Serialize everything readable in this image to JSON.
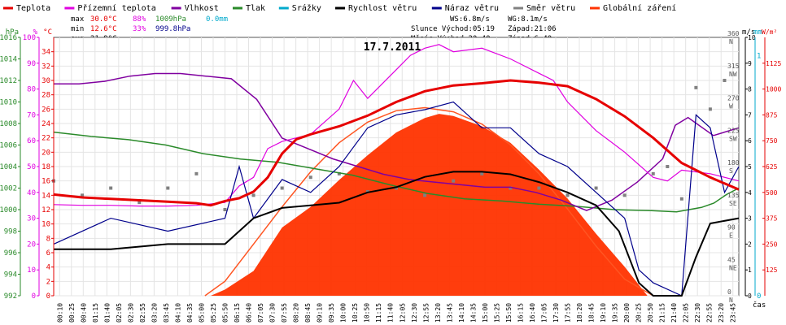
{
  "chart_data": {
    "type": "line",
    "title": "17.7.2011",
    "legend": [
      {
        "name": "Teplota",
        "color": "#e60000"
      },
      {
        "name": "Přízemní teplota",
        "color": "#e000e0"
      },
      {
        "name": "Vlhkost",
        "color": "#8000a0"
      },
      {
        "name": "Tlak",
        "color": "#2a8a2a"
      },
      {
        "name": "Srážky",
        "color": "#00aacc"
      },
      {
        "name": "Rychlost větru",
        "color": "#000000"
      },
      {
        "name": "Náraz větru",
        "color": "#00008b"
      },
      {
        "name": "Směr větru",
        "color": "#808080"
      },
      {
        "name": "Globální záření",
        "color": "#ff3300"
      }
    ],
    "stats": {
      "max_label": "max",
      "max_temp": "30.0°C",
      "max_hum": "88%",
      "max_press": "1009hPa",
      "rain": "0.0mm",
      "min_label": "min",
      "min_temp": "12.6°C",
      "min_hum": "33%",
      "min_press": "999.8hPa",
      "avg_label": "avg",
      "avg_temp": "21.9°C",
      "ws": "WS:6.8m/s",
      "wg": "WG:8.1m/s",
      "sun": "Slunce Východ:05:19",
      "sun_set": "Západ:21:06",
      "moon": "Měsíc  Východ:20:40",
      "moon_set": "Západ:6:40"
    },
    "axes": {
      "hpa": {
        "label": "hPa",
        "min": 992,
        "max": 1016,
        "ticks": [
          992,
          994,
          996,
          998,
          1000,
          1002,
          1004,
          1006,
          1008,
          1010,
          1012,
          1014,
          1016
        ],
        "color": "#2a8a2a"
      },
      "pct": {
        "label": "%",
        "min": 0,
        "max": 100,
        "ticks": [
          0,
          10,
          20,
          30,
          40,
          50,
          60,
          70,
          80,
          90,
          100
        ],
        "color": "#e000e0"
      },
      "temp": {
        "label": "°C",
        "min": 0,
        "max": 36,
        "ticks": [
          0,
          2,
          4,
          6,
          8,
          10,
          12,
          14,
          16,
          18,
          20,
          22,
          24,
          26,
          28,
          30,
          32,
          34
        ],
        "color": "#e60000"
      },
      "ms": {
        "label": "m/s",
        "min": 0,
        "max": 10,
        "ticks": [
          0,
          1,
          2,
          3,
          4,
          5,
          6,
          7,
          8,
          9,
          10
        ],
        "color": "#000000"
      },
      "mm": {
        "label": "mm",
        "min": 0,
        "max": 1,
        "ticks": [
          "0",
          "1"
        ],
        "color": "#00aacc"
      },
      "wm2": {
        "label": "W/m²",
        "min": 0,
        "max": 1250,
        "ticks": [
          125,
          250,
          375,
          500,
          625,
          750,
          875,
          1000,
          1125
        ],
        "color": "#e60000"
      },
      "dir": {
        "ticks": [
          {
            "deg": 0,
            "l1": "0",
            "l2": "N"
          },
          {
            "deg": 45,
            "l1": "45",
            "l2": "NE"
          },
          {
            "deg": 90,
            "l1": "90",
            "l2": "E"
          },
          {
            "deg": 135,
            "l1": "135",
            "l2": "SE"
          },
          {
            "deg": 180,
            "l1": "180",
            "l2": "S"
          },
          {
            "deg": 225,
            "l1": "225",
            "l2": "SW"
          },
          {
            "deg": 270,
            "l1": "270",
            "l2": "W"
          },
          {
            "deg": 315,
            "l1": "315",
            "l2": "NW"
          },
          {
            "deg": 360,
            "l1": "360",
            "l2": "N"
          }
        ]
      },
      "x_label": "čas",
      "x_ticks": [
        "00:10",
        "00:25",
        "00:40",
        "01:15",
        "01:40",
        "02:05",
        "02:30",
        "02:55",
        "03:20",
        "03:45",
        "04:10",
        "04:35",
        "05:00",
        "05:25",
        "05:50",
        "06:15",
        "06:40",
        "07:05",
        "07:30",
        "07:55",
        "08:20",
        "08:45",
        "09:10",
        "09:35",
        "10:00",
        "10:25",
        "10:50",
        "11:15",
        "11:40",
        "12:05",
        "12:30",
        "12:55",
        "13:20",
        "13:45",
        "14:10",
        "14:35",
        "15:00",
        "15:25",
        "15:50",
        "16:15",
        "16:40",
        "17:05",
        "17:30",
        "17:55",
        "18:20",
        "18:45",
        "19:10",
        "19:35",
        "20:00",
        "20:25",
        "20:50",
        "21:15",
        "21:40",
        "22:05",
        "22:30",
        "22:55",
        "23:20",
        "23:45"
      ]
    },
    "series": {
      "temperature": {
        "unit": "°C",
        "points": [
          [
            0,
            14.1
          ],
          [
            1,
            13.7
          ],
          [
            2,
            13.5
          ],
          [
            3,
            13.3
          ],
          [
            4,
            13.1
          ],
          [
            5,
            12.9
          ],
          [
            5.5,
            12.6
          ],
          [
            6,
            13.2
          ],
          [
            6.5,
            13.6
          ],
          [
            7,
            14.5
          ],
          [
            7.5,
            16.5
          ],
          [
            8,
            19.8
          ],
          [
            8.5,
            21.8
          ],
          [
            9,
            22.5
          ],
          [
            10,
            23.6
          ],
          [
            11,
            25.1
          ],
          [
            12,
            27.0
          ],
          [
            13,
            28.5
          ],
          [
            14,
            29.3
          ],
          [
            15,
            29.6
          ],
          [
            16,
            30.0
          ],
          [
            17,
            29.7
          ],
          [
            18,
            29.2
          ],
          [
            19,
            27.4
          ],
          [
            20,
            25.0
          ],
          [
            21,
            22.0
          ],
          [
            22,
            18.5
          ],
          [
            22.5,
            17.5
          ],
          [
            23,
            16.5
          ],
          [
            24,
            14.8
          ]
        ]
      },
      "ground_temperature": {
        "unit": "°C",
        "points": [
          [
            0,
            12.7
          ],
          [
            1,
            12.6
          ],
          [
            2,
            12.6
          ],
          [
            3,
            12.5
          ],
          [
            4,
            12.5
          ],
          [
            5,
            12.6
          ],
          [
            6,
            13.0
          ],
          [
            6.5,
            15.3
          ],
          [
            7,
            16.5
          ],
          [
            7.5,
            20.5
          ],
          [
            8,
            21.5
          ],
          [
            9,
            22.5
          ],
          [
            10,
            26.0
          ],
          [
            10.5,
            30.0
          ],
          [
            11,
            27.5
          ],
          [
            12,
            31.5
          ],
          [
            12.5,
            33.5
          ],
          [
            13,
            34.5
          ],
          [
            13.5,
            35.0
          ],
          [
            14,
            34.0
          ],
          [
            15,
            34.5
          ],
          [
            16,
            33.0
          ],
          [
            17,
            31.0
          ],
          [
            17.5,
            30.0
          ],
          [
            18,
            27.0
          ],
          [
            19,
            23.0
          ],
          [
            20,
            20.0
          ],
          [
            21,
            16.5
          ],
          [
            21.5,
            16.0
          ],
          [
            22,
            17.5
          ],
          [
            23,
            17.0
          ],
          [
            24,
            16.0
          ]
        ]
      },
      "humidity": {
        "unit": "%",
        "points": [
          [
            0,
            82
          ],
          [
            1,
            82
          ],
          [
            2,
            83
          ],
          [
            3,
            85
          ],
          [
            4,
            86
          ],
          [
            5,
            86
          ],
          [
            6,
            85
          ],
          [
            7,
            84
          ],
          [
            8,
            76
          ],
          [
            9,
            61
          ],
          [
            10,
            57
          ],
          [
            11,
            53
          ],
          [
            12,
            50
          ],
          [
            13,
            47
          ],
          [
            14,
            45
          ],
          [
            15,
            44
          ],
          [
            16,
            43
          ],
          [
            17,
            42
          ],
          [
            18,
            42
          ],
          [
            19,
            40
          ],
          [
            20,
            37
          ],
          [
            21,
            33
          ],
          [
            22,
            37
          ],
          [
            23,
            44
          ],
          [
            24,
            53
          ],
          [
            24.5,
            66
          ],
          [
            25,
            69
          ],
          [
            26,
            62
          ],
          [
            27,
            65
          ]
        ]
      },
      "pressure": {
        "unit": "hPa",
        "points": [
          [
            0,
            1007.2
          ],
          [
            3,
            1006.8
          ],
          [
            6,
            1006.5
          ],
          [
            9,
            1006.0
          ],
          [
            12,
            1005.2
          ],
          [
            15,
            1004.7
          ],
          [
            18,
            1004.4
          ],
          [
            21,
            1003.8
          ],
          [
            24,
            1003.2
          ],
          [
            27,
            1002.3
          ],
          [
            30,
            1001.5
          ],
          [
            33,
            1001.0
          ],
          [
            36,
            1000.8
          ],
          [
            39,
            1000.5
          ],
          [
            42,
            1000.3
          ],
          [
            45,
            1000.0
          ],
          [
            48,
            999.9
          ],
          [
            50,
            999.8
          ],
          [
            51,
            1000.0
          ],
          [
            52,
            1000.2
          ],
          [
            53,
            1000.6
          ],
          [
            54,
            1001.4
          ],
          [
            55,
            1002.0
          ]
        ]
      },
      "radiation_theoretical": {
        "unit": "W/m²",
        "points": [
          [
            5.3,
            0
          ],
          [
            6,
            70
          ],
          [
            7,
            250
          ],
          [
            8,
            430
          ],
          [
            9,
            600
          ],
          [
            10,
            740
          ],
          [
            11,
            840
          ],
          [
            12,
            895
          ],
          [
            13,
            910
          ],
          [
            14,
            890
          ],
          [
            15,
            830
          ],
          [
            16,
            730
          ],
          [
            17,
            590
          ],
          [
            18,
            420
          ],
          [
            19,
            240
          ],
          [
            20,
            80
          ],
          [
            21,
            0
          ]
        ]
      },
      "radiation_measured": {
        "unit": "W/m²",
        "points": [
          [
            5.5,
            0
          ],
          [
            6,
            30
          ],
          [
            7,
            120
          ],
          [
            8,
            330
          ],
          [
            9,
            430
          ],
          [
            10,
            560
          ],
          [
            11,
            680
          ],
          [
            12,
            790
          ],
          [
            13,
            860
          ],
          [
            13.5,
            880
          ],
          [
            14,
            870
          ],
          [
            15,
            820
          ],
          [
            16,
            740
          ],
          [
            17,
            610
          ],
          [
            18,
            470
          ],
          [
            19,
            300
          ],
          [
            20,
            140
          ],
          [
            20.8,
            0
          ]
        ]
      },
      "wind_speed": {
        "unit": "m/s",
        "points": [
          [
            0,
            1.8
          ],
          [
            2,
            1.8
          ],
          [
            4,
            2.0
          ],
          [
            6,
            2.0
          ],
          [
            7,
            3.0
          ],
          [
            8,
            3.4
          ],
          [
            9,
            3.5
          ],
          [
            10,
            3.6
          ],
          [
            11,
            4.0
          ],
          [
            12,
            4.2
          ],
          [
            13,
            4.6
          ],
          [
            14,
            4.8
          ],
          [
            15,
            4.8
          ],
          [
            16,
            4.7
          ],
          [
            17,
            4.4
          ],
          [
            18,
            4.0
          ],
          [
            19,
            3.5
          ],
          [
            19.8,
            2.5
          ],
          [
            20.5,
            0.5
          ],
          [
            21,
            0
          ],
          [
            22,
            0
          ],
          [
            22.5,
            1.5
          ],
          [
            23,
            2.8
          ],
          [
            24,
            3.0
          ]
        ]
      },
      "wind_gust": {
        "unit": "m/s",
        "points": [
          [
            0,
            2.0
          ],
          [
            2,
            3.0
          ],
          [
            4,
            2.5
          ],
          [
            6,
            3.0
          ],
          [
            6.5,
            5.0
          ],
          [
            7,
            3.0
          ],
          [
            8,
            4.5
          ],
          [
            9,
            4.0
          ],
          [
            10,
            5.0
          ],
          [
            11,
            6.5
          ],
          [
            12,
            7.0
          ],
          [
            13,
            7.2
          ],
          [
            14,
            7.5
          ],
          [
            15,
            6.5
          ],
          [
            16,
            6.5
          ],
          [
            17,
            5.5
          ],
          [
            18,
            5.0
          ],
          [
            19,
            4.0
          ],
          [
            20,
            3.0
          ],
          [
            20.5,
            1.0
          ],
          [
            21,
            0.5
          ],
          [
            22,
            0
          ],
          [
            22.5,
            7.0
          ],
          [
            23,
            6.5
          ],
          [
            23.5,
            4.0
          ],
          [
            24,
            5.0
          ]
        ]
      },
      "wind_direction": {
        "unit": "°",
        "points": [
          [
            0,
            160
          ],
          [
            1,
            140
          ],
          [
            2,
            150
          ],
          [
            3,
            130
          ],
          [
            4,
            150
          ],
          [
            5,
            170
          ],
          [
            6,
            120
          ],
          [
            7,
            140
          ],
          [
            8,
            150
          ],
          [
            9,
            165
          ],
          [
            10,
            170
          ],
          [
            11,
            145
          ],
          [
            12,
            150
          ],
          [
            13,
            140
          ],
          [
            14,
            160
          ],
          [
            15,
            170
          ],
          [
            16,
            150
          ],
          [
            17,
            150
          ],
          [
            18,
            140
          ],
          [
            19,
            150
          ],
          [
            20,
            140
          ],
          [
            21,
            170
          ],
          [
            21.5,
            180
          ],
          [
            22,
            135
          ],
          [
            22.5,
            290
          ],
          [
            23,
            260
          ],
          [
            23.5,
            300
          ]
        ]
      }
    }
  }
}
